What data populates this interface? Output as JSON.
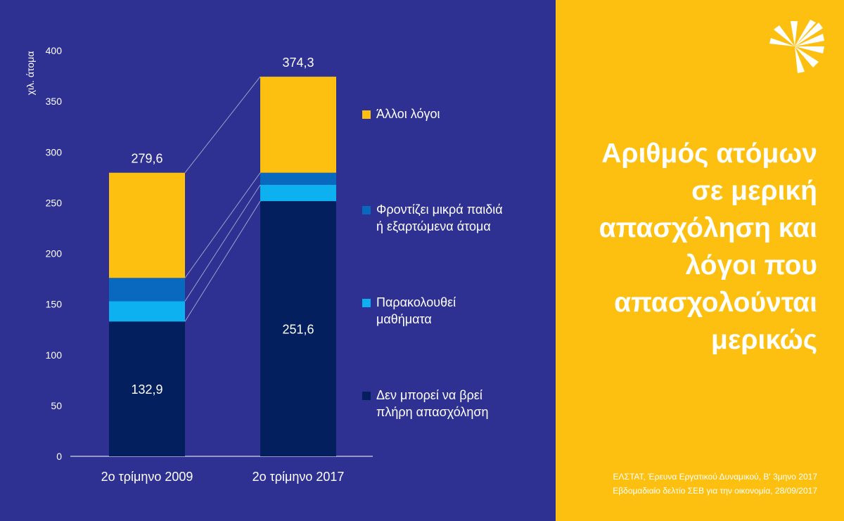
{
  "colors": {
    "background": "#2e3192",
    "title_panel": "#fdc010",
    "series": [
      "#041f5d",
      "#0db1f0",
      "#0869bf",
      "#fdc010"
    ]
  },
  "chart_data": {
    "type": "bar",
    "stacked": true,
    "categories": [
      "2ο τρίμηνο 2009",
      "2ο τρίμηνο 2017"
    ],
    "ylabel": "χιλ. άτομα",
    "ylim": [
      0,
      400
    ],
    "yticks": [
      0,
      50,
      100,
      150,
      200,
      250,
      300,
      350,
      400
    ],
    "grid": false,
    "series": [
      {
        "name": "Δεν μπορεί να βρεί πλήρη απασχόληση",
        "values": [
          132.9,
          251.6
        ]
      },
      {
        "name": "Παρακολουθεί μαθήματα",
        "values": [
          20,
          16
        ]
      },
      {
        "name": "Φροντίζει μικρά παιδιά ή εξαρτώμενα άτομα",
        "values": [
          23,
          12
        ]
      },
      {
        "name": "Άλλοι λόγοι",
        "values": [
          103.7,
          94.7
        ]
      }
    ],
    "totals": [
      "279,6",
      "374,3"
    ],
    "base_labels": [
      "132,9",
      "251,6"
    ],
    "legend_position": "right"
  },
  "legend": [
    {
      "label": "Άλλοι λόγοι",
      "color": "#fdc010"
    },
    {
      "label": "Φροντίζει μικρά παιδιά\nή εξαρτώμενα άτομα",
      "color": "#0869bf"
    },
    {
      "label": "Παρακολουθεί\nμαθήματα",
      "color": "#0db1f0"
    },
    {
      "label": "Δεν μπορεί να βρεί\nπλήρη απασχόληση",
      "color": "#041f5d"
    }
  ],
  "title": "Αριθμός ατόμων\nσε μερική\nαπασχόληση και\nλόγοι που\nαπασχολούνται\nμερικώς",
  "source": {
    "line1": "ΕΛΣΤΑΤ, Έρευνα Εργατικού Δυναμικού, Β' 3μηνο 2017",
    "line2": "Εβδομαδιαίο δελτίο ΣΕΒ για την οικονομία, 28/09/2017"
  },
  "logo": {
    "icon": "sev-sunburst-icon"
  }
}
